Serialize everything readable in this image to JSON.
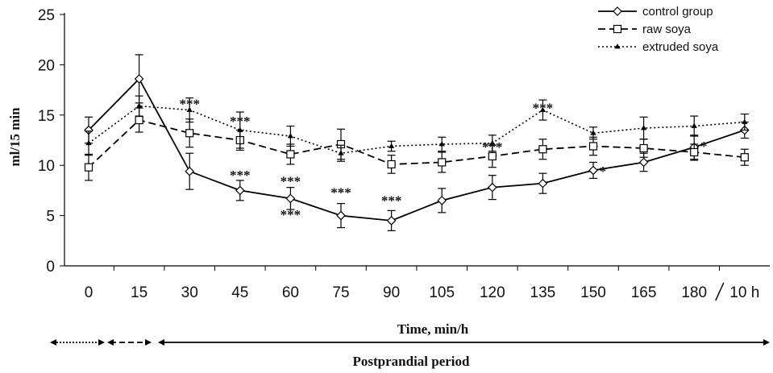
{
  "chart_data": {
    "type": "line",
    "xlabel": "Time, min/h",
    "ylabel": "ml/15  min",
    "categories": [
      "0",
      "15",
      "30",
      "45",
      "60",
      "75",
      "90",
      "105",
      "120",
      "135",
      "150",
      "165",
      "180",
      "10 h"
    ],
    "ylim": [
      0,
      25
    ],
    "yticks": [
      0,
      5,
      10,
      15,
      20,
      25
    ],
    "grid": false,
    "legend_position": "top-right",
    "series": [
      {
        "name": "control group",
        "style": "solid",
        "marker": "diamond",
        "values": [
          13.5,
          18.6,
          9.4,
          7.5,
          6.7,
          5.0,
          4.5,
          6.5,
          7.8,
          8.2,
          9.5,
          10.3,
          11.8,
          13.5
        ],
        "errors": [
          1.3,
          2.4,
          1.8,
          1.0,
          1.1,
          1.2,
          1.0,
          1.2,
          1.2,
          1.0,
          0.8,
          0.9,
          1.2,
          0.8
        ]
      },
      {
        "name": "raw soya",
        "style": "dashed",
        "marker": "square",
        "values": [
          9.8,
          14.5,
          13.2,
          12.5,
          11.1,
          12.1,
          10.1,
          10.3,
          10.9,
          11.6,
          11.9,
          11.7,
          11.3,
          10.8
        ],
        "errors": [
          1.3,
          1.2,
          1.4,
          1.0,
          1.0,
          1.5,
          0.9,
          1.0,
          1.1,
          1.0,
          0.9,
          0.9,
          0.8,
          0.8
        ]
      },
      {
        "name": "extruded soya",
        "style": "dotted",
        "marker": "triangle",
        "values": [
          12.2,
          15.9,
          15.5,
          13.5,
          12.9,
          11.2,
          11.9,
          12.1,
          12.2,
          15.5,
          13.2,
          13.7,
          13.9,
          14.3
        ],
        "errors": [
          1.2,
          1.0,
          1.2,
          1.8,
          1.0,
          0.8,
          0.5,
          0.7,
          0.8,
          1.0,
          0.6,
          1.1,
          1.0,
          0.8
        ]
      }
    ],
    "annotations": [
      {
        "text": "***",
        "x_index": 2,
        "y": 16.3
      },
      {
        "text": "***",
        "x_index": 3,
        "y": 14.6
      },
      {
        "text": "***",
        "x_index": 3,
        "y": 9.2
      },
      {
        "text": "***",
        "x_index": 4,
        "y": 8.6
      },
      {
        "text": "***",
        "x_index": 4,
        "y": 5.3
      },
      {
        "text": "***",
        "x_index": 5,
        "y": 7.5
      },
      {
        "text": "***",
        "x_index": 6,
        "y": 6.7
      },
      {
        "text": "***",
        "x_index": 8,
        "y": 12.0
      },
      {
        "text": "***",
        "x_index": 9,
        "y": 15.9
      },
      {
        "text": "*",
        "x_index": 10,
        "y": 9.6
      },
      {
        "text": "*",
        "x_index": 12,
        "y": 12.1
      }
    ],
    "periods": [
      {
        "style": "dotted",
        "from_index": 0,
        "to_index": 0,
        "label": ""
      },
      {
        "style": "dashed",
        "from_index": 1,
        "to_index": 1,
        "label": ""
      },
      {
        "style": "solid",
        "from_index": 2,
        "to_index": 13,
        "label": "Postprandial period"
      }
    ]
  }
}
